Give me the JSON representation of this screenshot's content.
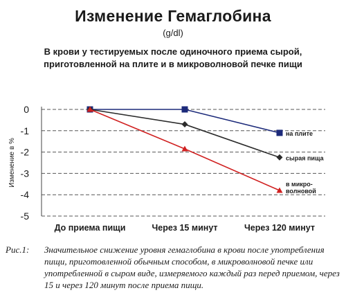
{
  "header": {
    "title": "Изменение Гемаглобина",
    "unit": "(g/dl)",
    "subtitle_line1": "В крови у тестируемых после одиночного приема сырой,",
    "subtitle_line2": "приготовленной на плите и в микроволновой печке пищи"
  },
  "chart_data": {
    "type": "line",
    "ylabel": "Изменение в %",
    "ylim": [
      -5,
      0
    ],
    "yticks": [
      "0",
      "-1",
      "-2",
      "-3",
      "-4",
      "-5"
    ],
    "ytick_values": [
      0,
      -1,
      -2,
      -3,
      -4,
      -5
    ],
    "categories": [
      "До приема пищи",
      "Через 15 минут",
      "Через 120 минут"
    ],
    "grid": "horizontal dashed",
    "series": [
      {
        "name": "на плите",
        "values": [
          0,
          0,
          -1.1
        ],
        "color": "#1c2a7a",
        "marker": "square"
      },
      {
        "name": "сырая пища",
        "values": [
          0,
          -0.7,
          -2.25
        ],
        "color": "#2b2b2b",
        "marker": "diamond"
      },
      {
        "name": "в микро-волновой",
        "label_lines": [
          "в микро-",
          "волновой"
        ],
        "values": [
          0,
          -1.85,
          -3.8
        ],
        "color": "#d02020",
        "marker": "triangle"
      }
    ]
  },
  "caption": {
    "label": "Рис.1:",
    "text": "Значительное снижение уровня гемаглобина в крови после употребления пищи, приготовленной обычным способом, в микроволновой печке или употребленной в сыром виде, измеряемого каждый раз перед приемом, через 15 и через 120 минут после приема пищи."
  }
}
